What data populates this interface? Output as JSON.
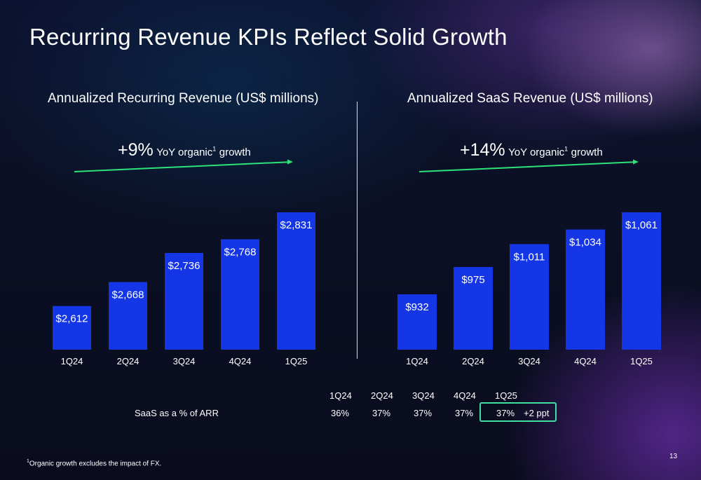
{
  "page_title": "Recurring Revenue KPIs Reflect Solid Growth",
  "colors": {
    "bar": "#1436e6",
    "growth_arrow": "#2ee27a",
    "highlight_box": "#3fe0a0",
    "text": "#ffffff"
  },
  "left_panel": {
    "title": "Annualized Recurring Revenue (US$ millions)",
    "growth_value": "+9%",
    "growth_text": "YoY organic",
    "growth_sup": "1",
    "growth_suffix": "growth"
  },
  "right_panel": {
    "title": "Annualized SaaS Revenue (US$ millions)",
    "growth_value": "+14%",
    "growth_text": "YoY organic",
    "growth_sup": "1",
    "growth_suffix": "growth"
  },
  "chart_data": [
    {
      "type": "bar",
      "title": "Annualized Recurring Revenue (US$ millions)",
      "categories": [
        "1Q24",
        "2Q24",
        "3Q24",
        "4Q24",
        "1Q25"
      ],
      "values": [
        2612,
        2668,
        2736,
        2768,
        2831
      ],
      "labels": [
        "$2,612",
        "$2,668",
        "$2,736",
        "$2,768",
        "$2,831"
      ],
      "annotation": "+9% YoY organic growth",
      "grid": false,
      "legend": "none"
    },
    {
      "type": "bar",
      "title": "Annualized SaaS Revenue (US$ millions)",
      "categories": [
        "1Q24",
        "2Q24",
        "3Q24",
        "4Q24",
        "1Q25"
      ],
      "values": [
        932,
        975,
        1011,
        1034,
        1061
      ],
      "labels": [
        "$932",
        "$975",
        "$1,011",
        "$1,034",
        "$1,061"
      ],
      "annotation": "+14% YoY organic growth",
      "grid": false,
      "legend": "none"
    }
  ],
  "saas_table": {
    "row_label": "SaaS as a % of ARR",
    "headers": [
      "1Q24",
      "2Q24",
      "3Q24",
      "4Q24",
      "1Q25"
    ],
    "values": [
      "36%",
      "37%",
      "37%",
      "37%",
      "37%"
    ],
    "change_note": "+2 ppt"
  },
  "footnote": {
    "sup": "1",
    "text": "Organic growth excludes the impact of FX."
  },
  "page_number": "13"
}
